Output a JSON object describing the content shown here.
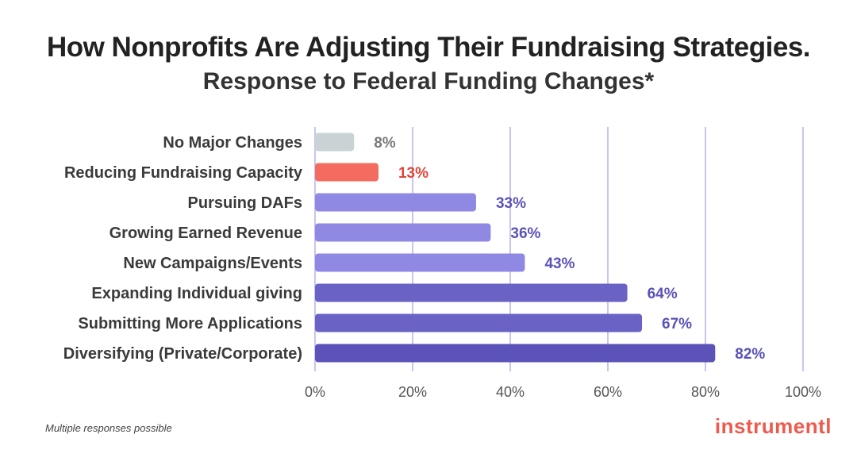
{
  "header": {
    "title": "How Nonprofits Are Adjusting Their Fundraising Strategies.",
    "subtitle": "Response to Federal Funding Changes*"
  },
  "footnote": "Multiple responses possible",
  "brand": "instrumentl",
  "colors": {
    "gray_bar": "#c9d3d6",
    "gray_text": "#7a7a7a",
    "red_bar": "#f46b5f",
    "red_text": "#e2453a",
    "light_purple": "#9089e3",
    "dark_purple": "#6a63c5",
    "darkest_purple": "#5b53b8",
    "purple_text": "#5a52b8",
    "grid": "#c9c4f0",
    "brand": "#ef5a4c"
  },
  "chart_data": {
    "type": "bar",
    "orientation": "horizontal",
    "title": "How Nonprofits Are Adjusting Their Fundraising Strategies.",
    "subtitle": "Response to Federal Funding Changes*",
    "categories": [
      "No Major Changes",
      "Reducing Fundraising Capacity",
      "Pursuing DAFs",
      "Growing Earned Revenue",
      "New Campaigns/Events",
      "Expanding Individual giving",
      "Submitting More Applications",
      "Diversifying (Private/Corporate)"
    ],
    "values": [
      8,
      13,
      33,
      36,
      43,
      64,
      67,
      82
    ],
    "value_labels": [
      "8%",
      "13%",
      "33%",
      "36%",
      "43%",
      "64%",
      "67%",
      "82%"
    ],
    "bar_colors": [
      "gray_bar",
      "red_bar",
      "light_purple",
      "light_purple",
      "light_purple",
      "dark_purple",
      "dark_purple",
      "darkest_purple"
    ],
    "label_colors": [
      "gray_text",
      "red_text",
      "purple_text",
      "purple_text",
      "purple_text",
      "purple_text",
      "purple_text",
      "purple_text"
    ],
    "xlim": [
      0,
      100
    ],
    "xticks": [
      0,
      20,
      40,
      60,
      80,
      100
    ],
    "xtick_labels": [
      "0%",
      "20%",
      "40%",
      "60%",
      "80%",
      "100%"
    ],
    "xlabel": "",
    "ylabel": "",
    "grid": true
  }
}
